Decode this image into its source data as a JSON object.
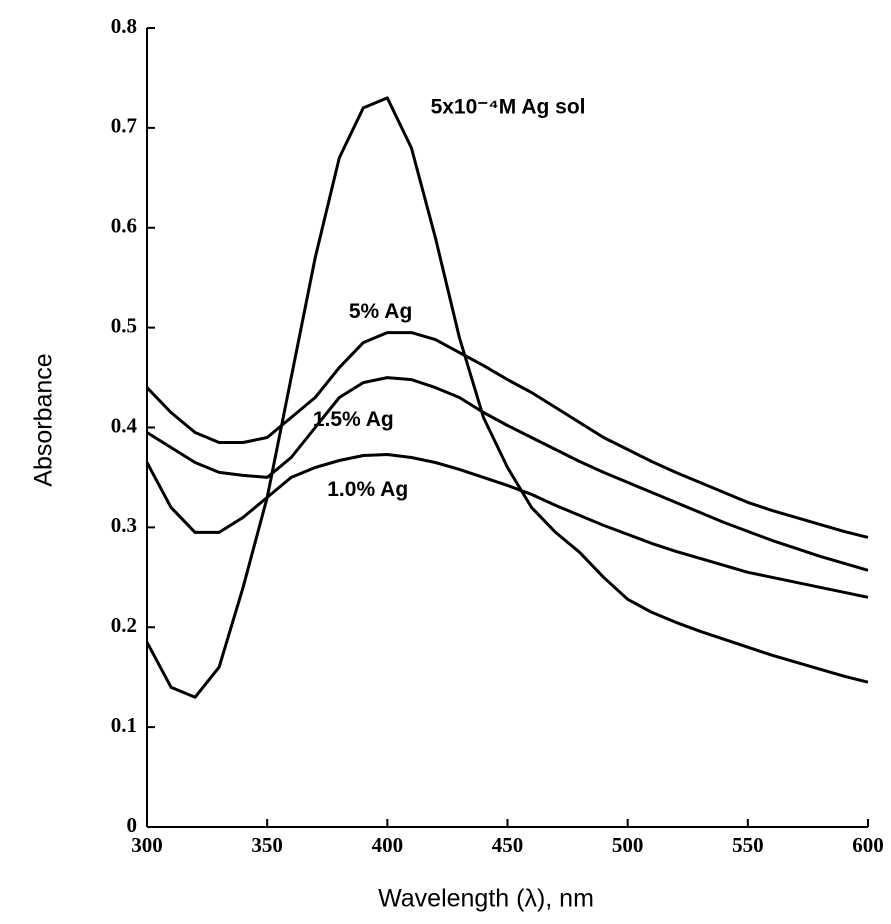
{
  "chart_data": {
    "type": "line",
    "x_label": "Wavelength (λ), nm",
    "y_label": "Absorbance",
    "x": [
      300,
      310,
      320,
      330,
      340,
      350,
      360,
      370,
      380,
      390,
      400,
      410,
      420,
      430,
      440,
      450,
      460,
      470,
      480,
      490,
      500,
      510,
      520,
      530,
      540,
      550,
      560,
      570,
      580,
      590,
      600
    ],
    "series": [
      {
        "name": "5x10⁻⁴M Ag sol",
        "color": "#000000",
        "values": [
          0.185,
          0.14,
          0.13,
          0.16,
          0.24,
          0.33,
          0.45,
          0.57,
          0.67,
          0.72,
          0.73,
          0.68,
          0.59,
          0.49,
          0.41,
          0.36,
          0.32,
          0.295,
          0.275,
          0.25,
          0.228,
          0.215,
          0.205,
          0.196,
          0.188,
          0.18,
          0.172,
          0.165,
          0.158,
          0.151,
          0.145
        ]
      },
      {
        "name": "5% Ag",
        "color": "#000000",
        "values": [
          0.44,
          0.415,
          0.395,
          0.385,
          0.385,
          0.39,
          0.41,
          0.43,
          0.46,
          0.485,
          0.495,
          0.495,
          0.488,
          0.475,
          0.462,
          0.448,
          0.435,
          0.42,
          0.405,
          0.39,
          0.378,
          0.366,
          0.355,
          0.345,
          0.335,
          0.325,
          0.317,
          0.31,
          0.303,
          0.296,
          0.29
        ]
      },
      {
        "name": "1.5% Ag",
        "color": "#000000",
        "values": [
          0.395,
          0.38,
          0.365,
          0.355,
          0.352,
          0.35,
          0.37,
          0.4,
          0.43,
          0.445,
          0.45,
          0.448,
          0.44,
          0.43,
          0.415,
          0.402,
          0.39,
          0.378,
          0.366,
          0.355,
          0.345,
          0.335,
          0.325,
          0.315,
          0.305,
          0.296,
          0.287,
          0.279,
          0.271,
          0.264,
          0.257
        ]
      },
      {
        "name": "1.0% Ag",
        "color": "#000000",
        "values": [
          0.365,
          0.32,
          0.295,
          0.295,
          0.31,
          0.33,
          0.35,
          0.36,
          0.367,
          0.372,
          0.373,
          0.37,
          0.365,
          0.358,
          0.35,
          0.342,
          0.333,
          0.322,
          0.312,
          0.302,
          0.293,
          0.284,
          0.276,
          0.269,
          0.262,
          0.255,
          0.25,
          0.245,
          0.24,
          0.235,
          0.23
        ]
      }
    ],
    "xlim": [
      300,
      600
    ],
    "xticks": [
      300,
      350,
      400,
      450,
      500,
      550,
      600
    ],
    "ylim": [
      0,
      0.8
    ],
    "yticks": [
      0,
      0.1,
      0.2,
      0.3,
      0.4,
      0.5,
      0.6,
      0.7,
      0.8
    ],
    "grid": false
  }
}
